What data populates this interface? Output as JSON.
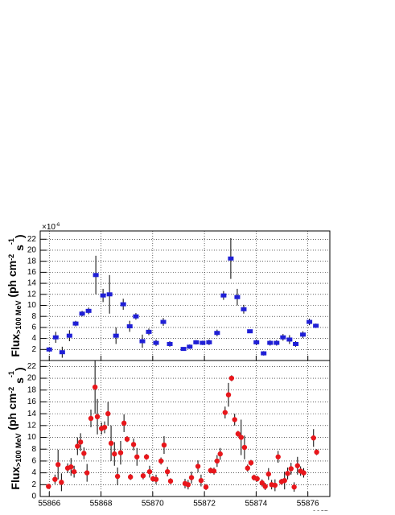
{
  "chart_data": [
    {
      "type": "scatter",
      "marker": "square",
      "color": "#1f1fd6",
      "y_multiplier": "×10",
      "y_multiplier_exp": "-6",
      "ylabel": [
        "Flux",
        ">100 MeV",
        " (ph cm",
        "-2",
        " s",
        "-1",
        ")"
      ],
      "x": [
        55866.0,
        55866.25,
        55866.5,
        55866.78,
        55867.02,
        55867.27,
        55867.52,
        55867.8,
        55868.08,
        55868.33,
        55868.58,
        55868.86,
        55869.11,
        55869.35,
        55869.6,
        55869.85,
        55870.13,
        55870.41,
        55870.66,
        55871.19,
        55871.43,
        55871.68,
        55871.93,
        55872.18,
        55872.49,
        55872.74,
        55873.02,
        55873.27,
        55873.52,
        55873.76,
        55874.01,
        55874.29,
        55874.54,
        55874.79,
        55875.04,
        55875.29,
        55875.53,
        55875.81,
        55876.06,
        55876.31
      ],
      "values": [
        2,
        4.2,
        1.5,
        4.5,
        6.7,
        8.5,
        9,
        15.5,
        11.8,
        12,
        4.5,
        10.2,
        6.2,
        8,
        3.5,
        5.2,
        3.2,
        7,
        3,
        2.1,
        2.5,
        3.3,
        3.2,
        3.3,
        5,
        11.8,
        18.5,
        11.5,
        9.3,
        5.3,
        3.3,
        1.3,
        3.2,
        3.2,
        4.2,
        3.8,
        3,
        4.7,
        7,
        6.3
      ],
      "errors": [
        0.4,
        1,
        1,
        1,
        0.5,
        0.5,
        0.6,
        3.5,
        1.2,
        3.5,
        1.5,
        1,
        1,
        0.6,
        1.2,
        0.6,
        0.6,
        0.7,
        0.5,
        0.3,
        0.4,
        0.4,
        0.4,
        0.5,
        0.6,
        0.8,
        3.7,
        1.5,
        0.8,
        0.3,
        0.5,
        0.4,
        0.5,
        0.5,
        0.6,
        0.8,
        0.5,
        0.6,
        0.6,
        0.4
      ],
      "xlim": [
        55865.65,
        55876.85
      ],
      "xticks": [
        55866,
        55868,
        55870,
        55872,
        55874,
        55876
      ],
      "ylim": [
        0,
        23.5
      ],
      "yticks": [
        2,
        4,
        6,
        8,
        10,
        12,
        14,
        16,
        18,
        20,
        22
      ],
      "grid": true
    },
    {
      "type": "scatter",
      "marker": "circle",
      "color": "#e8161b",
      "xlabel": "MJD",
      "ylabel": [
        "Flux",
        ">100 MeV",
        " (ph cm",
        "-2",
        " s",
        "-1",
        ")"
      ],
      "x": [
        55865.97,
        55866.22,
        55866.34,
        55866.47,
        55866.71,
        55866.84,
        55866.96,
        55867.09,
        55867.21,
        55867.34,
        55867.46,
        55867.61,
        55867.77,
        55867.86,
        55868.02,
        55868.14,
        55868.27,
        55868.39,
        55868.52,
        55868.64,
        55868.76,
        55868.89,
        55869.01,
        55869.14,
        55869.26,
        55869.39,
        55869.63,
        55869.76,
        55869.88,
        55870.01,
        55870.13,
        55870.32,
        55870.44,
        55870.57,
        55870.69,
        55871.25,
        55871.37,
        55871.5,
        55871.75,
        55871.87,
        55872.06,
        55872.24,
        55872.37,
        55872.49,
        55872.61,
        55872.8,
        55872.93,
        55873.05,
        55873.17,
        55873.3,
        55873.42,
        55873.55,
        55873.67,
        55873.8,
        55873.92,
        55874.04,
        55874.23,
        55874.35,
        55874.48,
        55874.6,
        55874.73,
        55874.85,
        55874.98,
        55875.1,
        55875.22,
        55875.35,
        55875.47,
        55875.6,
        55875.72,
        55875.84,
        55876.22,
        55876.34
      ],
      "values": [
        1.7,
        2.9,
        5.4,
        2.4,
        4.8,
        5,
        4.2,
        8.5,
        9.2,
        7.3,
        4,
        13.2,
        18.5,
        13.5,
        11.5,
        11.7,
        14,
        9,
        7.2,
        3.4,
        7.4,
        12.4,
        9.7,
        3.3,
        8.8,
        6.7,
        3.5,
        6.7,
        4.2,
        3,
        2.9,
        6,
        8.7,
        4.2,
        2.6,
        2.2,
        2,
        3.2,
        5.1,
        2.7,
        1.6,
        4.4,
        4.3,
        6,
        7.2,
        14.2,
        17.2,
        20,
        13,
        10.6,
        10,
        8.3,
        4.8,
        5.7,
        3.2,
        3,
        2.3,
        1.7,
        3.8,
        2,
        1.9,
        6.7,
        2.5,
        2.7,
        3.9,
        4.7,
        1.6,
        5.2,
        4.3,
        4,
        9.9,
        7.5
      ],
      "errors": [
        0.4,
        0.8,
        2.5,
        1.5,
        0.8,
        1.5,
        1,
        1.5,
        1.5,
        1,
        1.5,
        1.5,
        4.5,
        3,
        1,
        1,
        2,
        3,
        2,
        1.5,
        2,
        1.5,
        0.5,
        0.5,
        1,
        1.5,
        0.6,
        0.5,
        1,
        0.5,
        0.8,
        0.6,
        1.5,
        0.8,
        0.5,
        0.8,
        0.8,
        1,
        1,
        1,
        0.5,
        0.5,
        0.6,
        1,
        1,
        1,
        2,
        0.5,
        1,
        0.5,
        3,
        2,
        0.6,
        0.5,
        0.5,
        0.5,
        0.6,
        0.6,
        1,
        0.8,
        1,
        1,
        0.5,
        1.5,
        1,
        1,
        0.8,
        1.5,
        0.8,
        0.8,
        1.5,
        0.5
      ],
      "xlim": [
        55865.65,
        55876.85
      ],
      "xticks": [
        55866,
        55868,
        55870,
        55872,
        55874,
        55876
      ],
      "ylim": [
        0,
        23
      ],
      "yticks": [
        0,
        2,
        4,
        6,
        8,
        10,
        12,
        14,
        16,
        18,
        20,
        22
      ],
      "grid": true
    }
  ]
}
